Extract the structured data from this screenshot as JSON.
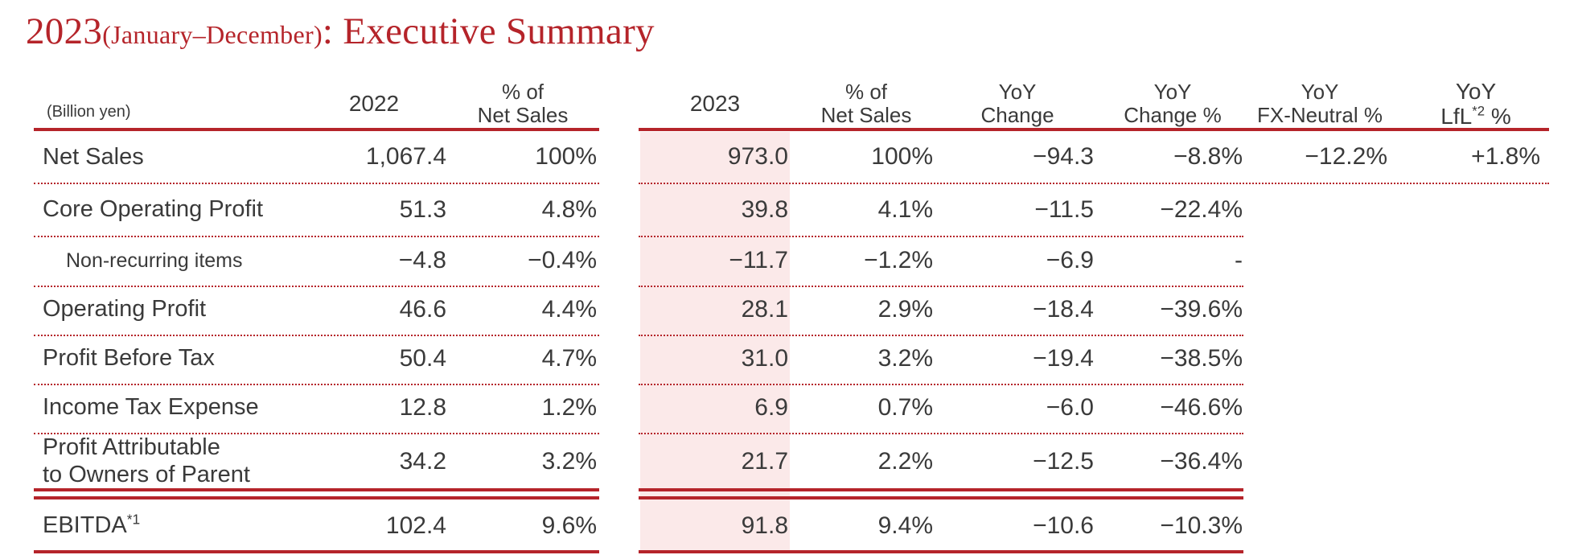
{
  "title": {
    "year": "2023",
    "period": "(January–December)",
    "heading": ": Executive Summary"
  },
  "colors": {
    "accent": "#b5242a",
    "shade": "#fbe9e9",
    "text": "#3a3a3a"
  },
  "headers": {
    "unit": "(Billion yen)",
    "y2022": "2022",
    "pct2022_l1": "% of",
    "pct2022_l2": "Net Sales",
    "y2023": "2023",
    "pct2023_l1": "% of",
    "pct2023_l2": "Net Sales",
    "yoy_l1": "YoY",
    "yoy_l2": "Change",
    "yoypct_l1": "YoY",
    "yoypct_l2": "Change %",
    "fx_l1": "YoY",
    "fx_l2": "FX-Neutral %",
    "lfl_l1": "YoY",
    "lfl_l2a": "LfL",
    "lfl_sup": "*2",
    "lfl_l2b": " %"
  },
  "rows": [
    {
      "label": "Net Sales",
      "v2022": "1,067.4",
      "p2022": "100%",
      "v2023": "973.0",
      "p2023": "100%",
      "chg": "−94.3",
      "chgpct": "−8.8%",
      "fx": "−12.2%",
      "lfl": "+1.8%"
    },
    {
      "label": "Core Operating Profit",
      "v2022": "51.3",
      "p2022": "4.8%",
      "v2023": "39.8",
      "p2023": "4.1%",
      "chg": "−11.5",
      "chgpct": "−22.4%"
    },
    {
      "label": "Non-recurring items",
      "v2022": "−4.8",
      "p2022": "−0.4%",
      "v2023": "−11.7",
      "p2023": "−1.2%",
      "chg": "−6.9",
      "chgpct": "-"
    },
    {
      "label": "Operating Profit",
      "v2022": "46.6",
      "p2022": "4.4%",
      "v2023": "28.1",
      "p2023": "2.9%",
      "chg": "−18.4",
      "chgpct": "−39.6%"
    },
    {
      "label": "Profit Before Tax",
      "v2022": "50.4",
      "p2022": "4.7%",
      "v2023": "31.0",
      "p2023": "3.2%",
      "chg": "−19.4",
      "chgpct": "−38.5%"
    },
    {
      "label": "Income Tax Expense",
      "v2022": "12.8",
      "p2022": "1.2%",
      "v2023": "6.9",
      "p2023": "0.7%",
      "chg": "−6.0",
      "chgpct": "−46.6%"
    },
    {
      "label_l1": "Profit Attributable",
      "label_l2": "to Owners of Parent",
      "v2022": "34.2",
      "p2022": "3.2%",
      "v2023": "21.7",
      "p2023": "2.2%",
      "chg": "−12.5",
      "chgpct": "−36.4%"
    },
    {
      "label": "EBITDA",
      "label_sup": "*1",
      "v2022": "102.4",
      "p2022": "9.6%",
      "v2023": "91.8",
      "p2023": "9.4%",
      "chg": "−10.6",
      "chgpct": "−10.3%"
    }
  ]
}
